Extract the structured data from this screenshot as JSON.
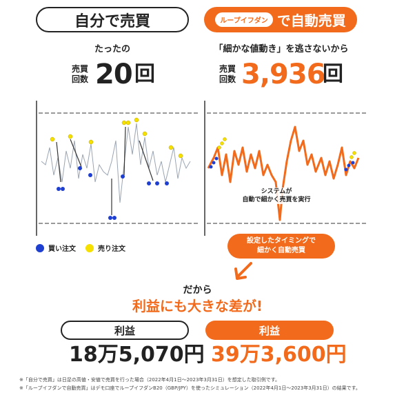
{
  "left": {
    "title": "自分で売買",
    "subtitle": "たったの",
    "count_label_1": "売買",
    "count_label_2": "回数",
    "count": "20",
    "count_unit": "回"
  },
  "right": {
    "badge": "ループイフダン",
    "title": "で自動売買",
    "subtitle": "「細かな値動き」を逃さないから",
    "count_label_1": "売買",
    "count_label_2": "回数",
    "count": "3,936",
    "count_unit": "回",
    "chart_annotation_1": "システムが",
    "chart_annotation_2": "自動で細かく売買を実行"
  },
  "legend": {
    "buy": "買い注文",
    "sell": "売り注文",
    "buy_color": "#1f3fd1",
    "sell_color": "#f6e000"
  },
  "callout": {
    "line1": "設定したタイミングで",
    "line2": "細かく自動売買"
  },
  "conclusion": {
    "line1": "だから",
    "line2": "利益にも大きな差が!"
  },
  "profit": {
    "label": "利益",
    "left_amount": "18万5,070円",
    "right_amount": "39万3,600円"
  },
  "notes": {
    "note1": "※「自分で売買」は日足の高値・安値で売買を行った場合（2022年4月1日〜2023年3月31日）を想定した取引例です。",
    "note2": "※「ループイフダンで自動売買」はデモ口座でループイフダンB20（GBP/JPY）を使ったシミュレーション（2022年4月1日〜2023年3月31日）の結果です。"
  },
  "colors": {
    "accent": "#f26a1b",
    "dark": "#222222"
  }
}
